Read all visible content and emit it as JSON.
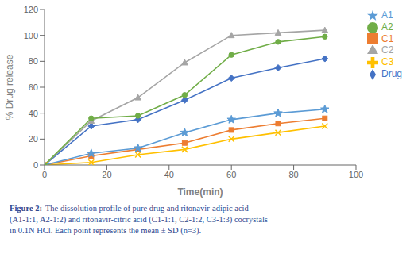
{
  "chart_data": {
    "type": "line",
    "x": [
      0,
      15,
      30,
      45,
      60,
      75,
      90
    ],
    "series": [
      {
        "name": "Drug",
        "color": "#4472C4",
        "marker": "diamond",
        "values": [
          0,
          30,
          35,
          50,
          67,
          75,
          82
        ]
      },
      {
        "name": "C1",
        "color": "#ED7D31",
        "marker": "square",
        "values": [
          0,
          7,
          12,
          17,
          27,
          32,
          36
        ]
      },
      {
        "name": "C2",
        "color": "#A5A5A5",
        "marker": "triangle",
        "values": [
          0,
          34,
          52,
          79,
          100,
          102,
          104
        ]
      },
      {
        "name": "C3",
        "color": "#FFC000",
        "marker": "x",
        "values": [
          0,
          2,
          8,
          12,
          20,
          25,
          30
        ]
      },
      {
        "name": "A1",
        "color": "#5B9BD5",
        "marker": "star",
        "values": [
          0,
          9,
          13,
          25,
          35,
          40,
          43
        ]
      },
      {
        "name": "A2",
        "color": "#70AD47",
        "marker": "circle",
        "values": [
          0,
          36,
          38,
          54,
          85,
          95,
          99
        ]
      }
    ],
    "xlabel": "Time(min)",
    "ylabel": "% Drug release",
    "xlim": [
      0,
      100
    ],
    "ylim": [
      0,
      120
    ],
    "xticks": [
      0,
      20,
      40,
      60,
      80,
      100
    ],
    "yticks": [
      0,
      20,
      40,
      60,
      80,
      100,
      120
    ],
    "grid": false,
    "legend": "right",
    "annotations": [
      {
        "text": "Figure 2:",
        "color": "#2E4990"
      },
      {
        "text": "The dissolution profile of pure drug and ritonavir-adipic acid\n(A1-1:1, A2-1:2) and ritonavir-citric acid (C1-1:1, C2-1:2, C3-1:3) cocrystals\nin 0.1N HCl. Each point represents the mean ± SD (n=3).",
        "color": "#2E4990"
      }
    ]
  }
}
